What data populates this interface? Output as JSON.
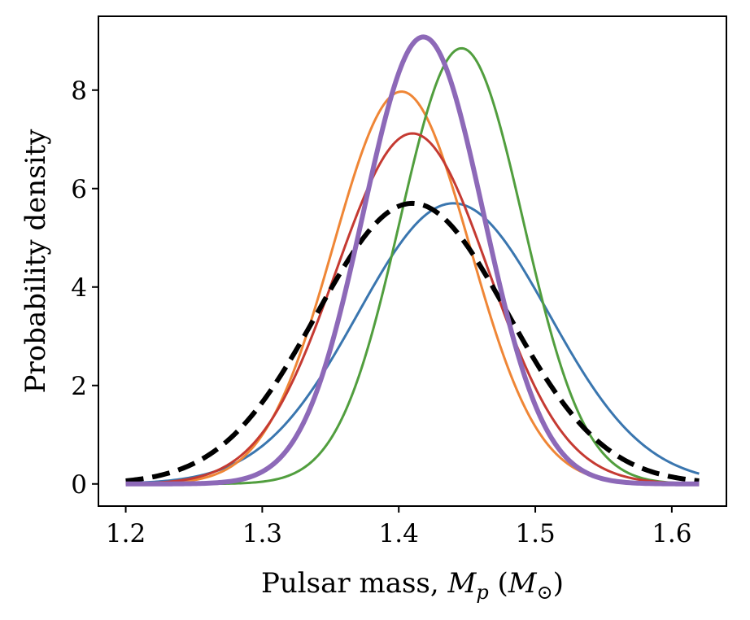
{
  "chart_data": {
    "type": "line",
    "xlabel": {
      "prefix": "Pulsar mass, ",
      "symbol": "M",
      "subscript": "p",
      "unit_open": " (",
      "unit_symbol": "M",
      "unit_subscript": "⊙",
      "unit_close": ")"
    },
    "ylabel": "Probability density",
    "xlim": [
      1.18,
      1.64
    ],
    "ylim": [
      -0.45,
      9.5
    ],
    "xticks": [
      1.2,
      1.3,
      1.4,
      1.5,
      1.6
    ],
    "xtick_labels": [
      "1.2",
      "1.3",
      "1.4",
      "1.5",
      "1.6"
    ],
    "yticks": [
      0,
      2,
      4,
      6,
      8
    ],
    "ytick_labels": [
      "0",
      "2",
      "4",
      "6",
      "8"
    ],
    "x_range": [
      1.2,
      1.62
    ],
    "grid": false,
    "series": [
      {
        "color": "#3a76af",
        "style": "solid",
        "weight": "thin",
        "peak_x": 1.44,
        "peak_y": 5.7,
        "sigma": 0.07
      },
      {
        "color": "#ef8636",
        "style": "solid",
        "weight": "thin",
        "peak_x": 1.402,
        "peak_y": 7.97,
        "sigma": 0.05
      },
      {
        "color": "#519e3e",
        "style": "solid",
        "weight": "thin",
        "peak_x": 1.446,
        "peak_y": 8.85,
        "sigma": 0.045
      },
      {
        "color": "#c53a32",
        "style": "solid",
        "weight": "thin",
        "peak_x": 1.41,
        "peak_y": 7.12,
        "sigma": 0.056
      },
      {
        "color": "#000000",
        "style": "dashed",
        "weight": "thick",
        "peak_x": 1.41,
        "peak_y": 5.7,
        "sigma": 0.07
      },
      {
        "color": "#8d69b8",
        "style": "solid",
        "weight": "thick",
        "peak_x": 1.418,
        "peak_y": 9.08,
        "sigma": 0.044
      }
    ]
  }
}
